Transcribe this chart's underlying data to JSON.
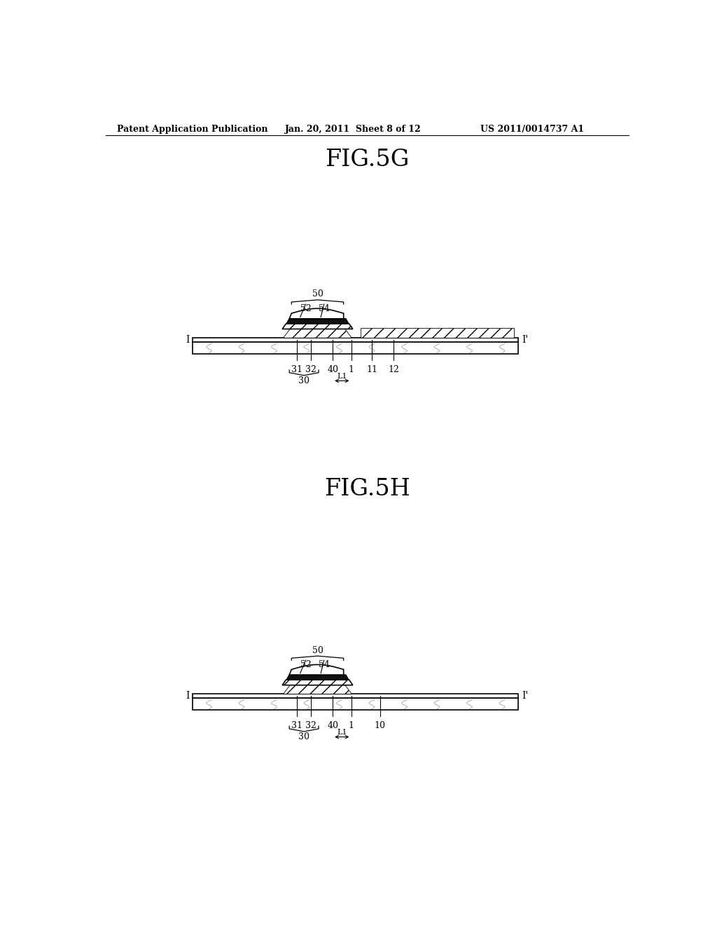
{
  "bg_color": "#ffffff",
  "header_left": "Patent Application Publication",
  "header_mid": "Jan. 20, 2011  Sheet 8 of 12",
  "header_right": "US 2011/0014737 A1",
  "fig_title_1": "FIG.5G",
  "fig_title_2": "FIG.5H",
  "line_color": "#000000",
  "dark_fill": "#111111"
}
